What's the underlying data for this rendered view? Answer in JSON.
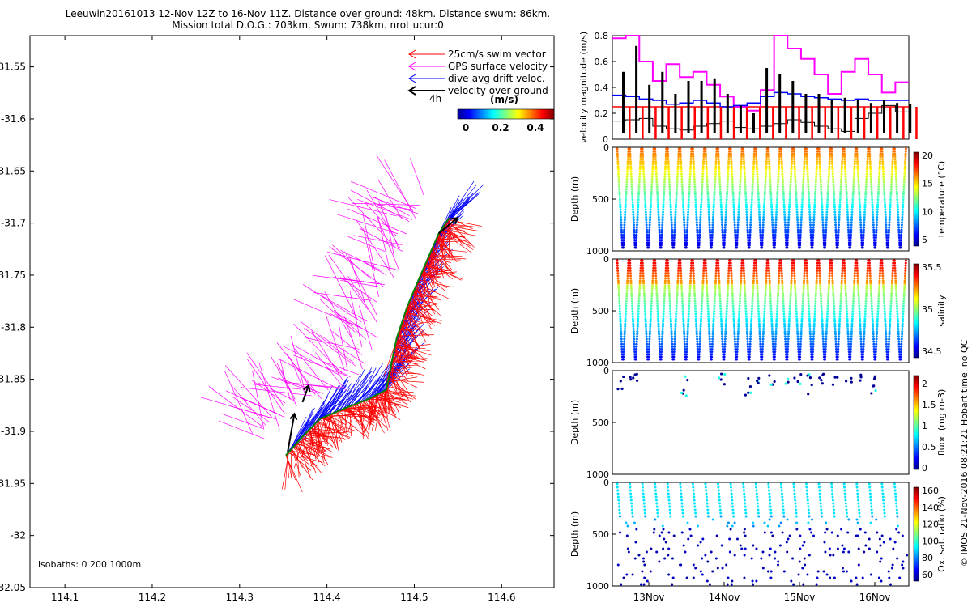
{
  "title_line1": "Leeuwin20161013 12-Nov 12Z to 16-Nov 11Z. Distance over ground: 48km. Distance swum: 86km.",
  "title_line2": "Mission total D.O.G.: 703km. Swum: 738km. nrot ucur:0",
  "copyright": "© IMOS 21-Nov-2016 08:21:21 Hobart time. no QC",
  "chart_data": [
    {
      "type": "scatter",
      "name": "map",
      "xlim": [
        114.06,
        114.66
      ],
      "ylim": [
        -32.05,
        -31.52
      ],
      "xticks": [
        114.1,
        114.2,
        114.3,
        114.4,
        114.5,
        114.6
      ],
      "xtick_labels": [
        "114.1",
        "114.2",
        "114.3",
        "114.4",
        "114.5",
        "114.6"
      ],
      "yticks": [
        -31.55,
        -31.6,
        -31.65,
        -31.7,
        -31.75,
        -31.8,
        -31.85,
        -31.9,
        -31.95,
        -32,
        -32.05
      ],
      "ytick_labels": [
        "31.55",
        "-31.6",
        "31.65",
        "-31.7",
        "31.75",
        "-31.8",
        "31.85",
        "-31.9",
        "31.95",
        "-32",
        "32.05"
      ],
      "isobaths_label": "isobaths: 0   200  1000m",
      "legend": [
        {
          "label": "25cm/s swim vector",
          "color": "#ff0000"
        },
        {
          "label": "GPS surface velocity",
          "color": "#ff00ff"
        },
        {
          "label": "dive-avg drift veloc.",
          "color": "#0000ff"
        },
        {
          "label": "velocity over ground",
          "color": "#000000"
        }
      ],
      "scale_label": "4h",
      "colorbar_title": "(m/s)",
      "colorbar_ticks": [
        "0",
        "0.2",
        "0.4"
      ],
      "track": [
        [
          114.353,
          -31.923
        ],
        [
          114.372,
          -31.905
        ],
        [
          114.392,
          -31.888
        ],
        [
          114.42,
          -31.878
        ],
        [
          114.45,
          -31.868
        ],
        [
          114.468,
          -31.86
        ],
        [
          114.475,
          -31.83
        ],
        [
          114.48,
          -31.81
        ],
        [
          114.492,
          -31.78
        ],
        [
          114.502,
          -31.76
        ],
        [
          114.515,
          -31.735
        ],
        [
          114.528,
          -31.71
        ],
        [
          114.54,
          -31.695
        ]
      ]
    },
    {
      "type": "line",
      "name": "velocity-magnitude",
      "ylabel": "velocity magnitude (m/s)",
      "ylim": [
        0,
        0.8
      ],
      "yticks": [
        "0",
        "0.2",
        "0.4",
        "0.6",
        "0.8"
      ],
      "series": [
        {
          "name": "swim speed",
          "color": "#ff0000",
          "values": [
            0.25,
            0.25,
            0.25,
            0.25,
            0.25,
            0.25,
            0.25,
            0.25,
            0.25,
            0.25,
            0.25,
            0.25
          ]
        },
        {
          "name": "GPS surface velocity",
          "color": "#ff00ff",
          "values": [
            0.78,
            0.8,
            0.6,
            0.45,
            0.58,
            0.48,
            0.52,
            0.42,
            0.33,
            0.25,
            0.22,
            0.38,
            0.8,
            0.7,
            0.62,
            0.5,
            0.35,
            0.52,
            0.62,
            0.5,
            0.36,
            0.44
          ]
        },
        {
          "name": "dive-avg drift",
          "color": "#0000ff",
          "values": [
            0.34,
            0.33,
            0.31,
            0.3,
            0.27,
            0.28,
            0.3,
            0.28,
            0.25,
            0.26,
            0.28,
            0.33,
            0.36,
            0.35,
            0.33,
            0.32,
            0.31,
            0.3,
            0.31,
            0.3,
            0.3,
            0.3
          ]
        },
        {
          "name": "velocity over ground",
          "color": "#000000",
          "values": [
            0.14,
            0.15,
            0.16,
            0.1,
            0.08,
            0.07,
            0.1,
            0.12,
            0.14,
            0.09,
            0.08,
            0.1,
            0.12,
            0.15,
            0.13,
            0.1,
            0.08,
            0.06,
            0.16,
            0.2,
            0.26,
            0.21
          ]
        }
      ]
    },
    {
      "type": "scatter",
      "name": "temperature",
      "ylabel": "Depth (m)",
      "yticks": [
        "0",
        "500",
        "1000"
      ],
      "cbar_label": "temperature (°C)",
      "cbar_ticks": [
        "5",
        "10",
        "15",
        "20"
      ]
    },
    {
      "type": "scatter",
      "name": "salinity",
      "ylabel": "Depth (m)",
      "yticks": [
        "0",
        "500",
        "1000"
      ],
      "cbar_label": "salinity",
      "cbar_ticks": [
        "34.5",
        "35",
        "35.5"
      ]
    },
    {
      "type": "scatter",
      "name": "fluorescence",
      "ylabel": "Depth (m)",
      "yticks": [
        "0",
        "500",
        "1000"
      ],
      "cbar_label": "fluor. (mg m-3)",
      "cbar_ticks": [
        "0",
        "0.5",
        "1",
        "1.5",
        "2"
      ]
    },
    {
      "type": "scatter",
      "name": "oxygen",
      "ylabel": "Depth (m)",
      "yticks": [
        "0",
        "500",
        "1000"
      ],
      "cbar_label": "Ox. sat. ratio (%)",
      "cbar_ticks": [
        "60",
        "80",
        "100",
        "120",
        "140",
        "160"
      ],
      "xtick_labels": [
        "13Nov",
        "14Nov",
        "15Nov",
        "16Nov"
      ]
    }
  ]
}
